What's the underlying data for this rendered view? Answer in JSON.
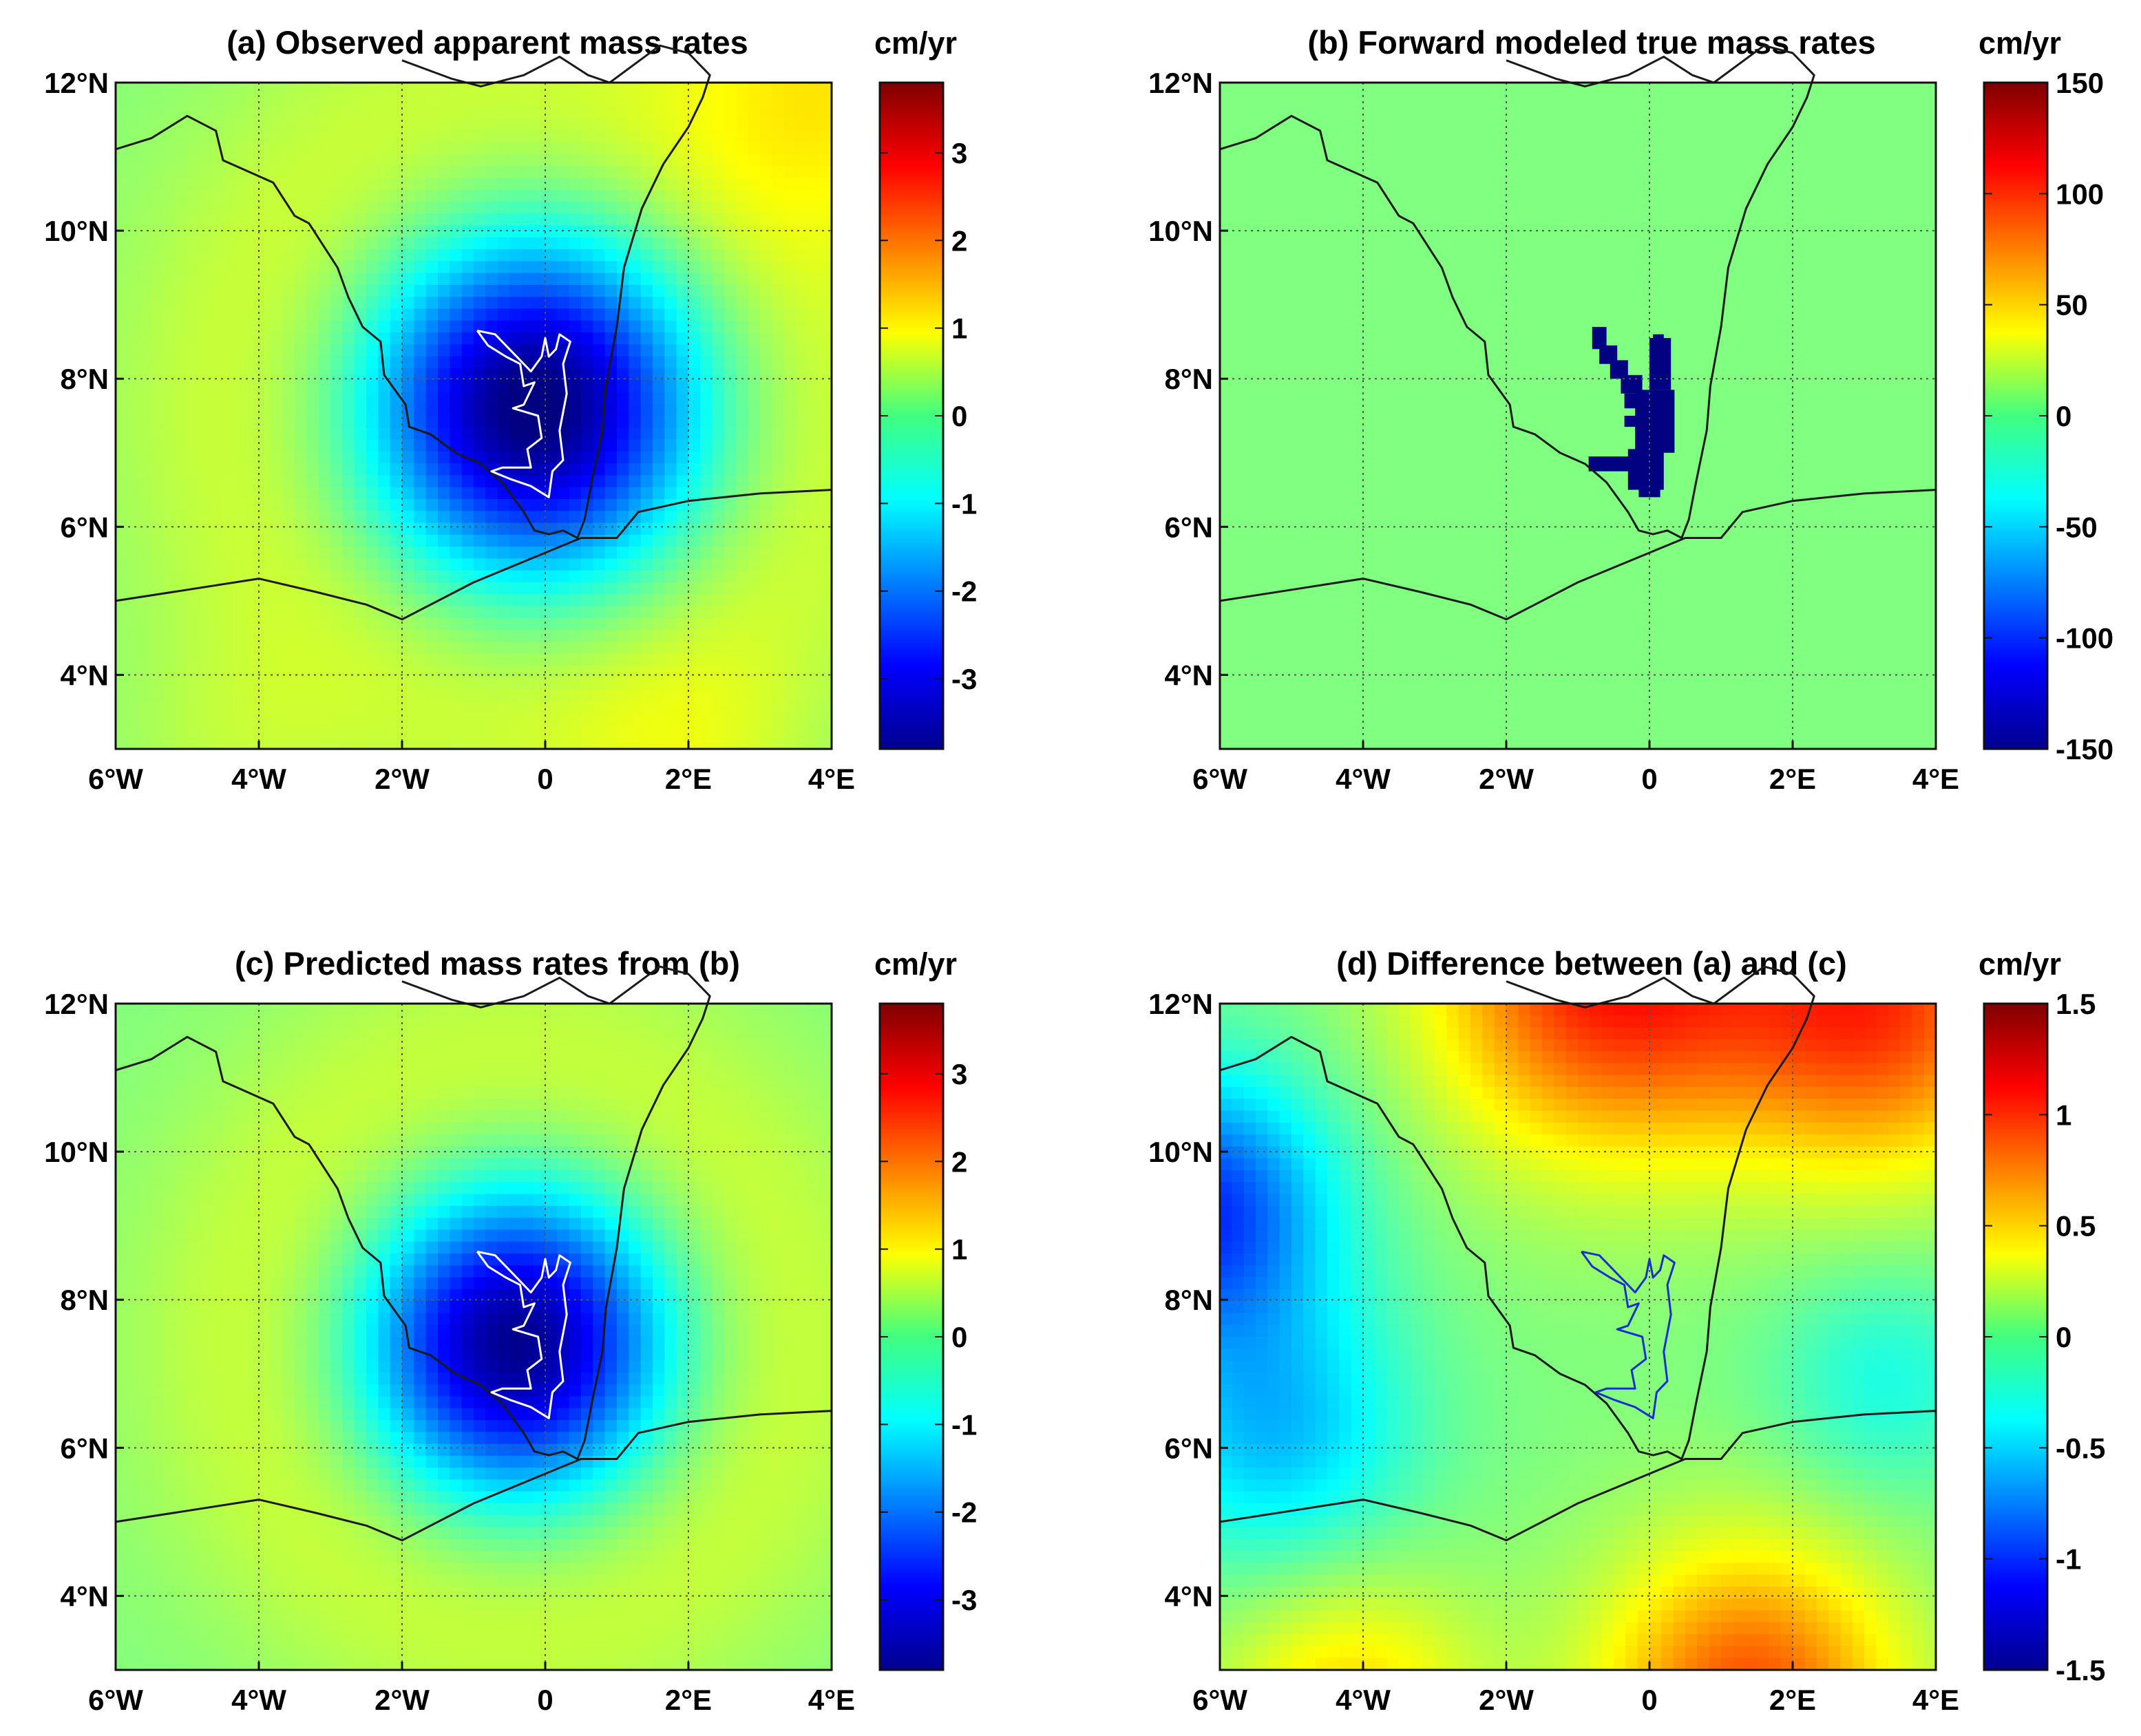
{
  "figure": {
    "lon_ticks": [
      "6°W",
      "4°W",
      "2°W",
      "0",
      "2°E",
      "4°E"
    ],
    "lat_ticks": [
      "12°N",
      "10°N",
      "8°N",
      "6°N",
      "4°N"
    ]
  },
  "chart_data": [
    {
      "type": "heatmap",
      "panel": "a",
      "title": "(a) Observed apparent mass rates",
      "colorbar_label": "cm/yr",
      "colorbar_ticks": [
        "3",
        "2",
        "1",
        "0",
        "-1",
        "-2",
        "-3"
      ],
      "colorbar_tick_values": [
        3,
        2,
        1,
        0,
        -1,
        -2,
        -3
      ],
      "clim": [
        -3.8,
        3.8
      ],
      "xlim": [
        -6,
        4
      ],
      "ylim": [
        3,
        12
      ],
      "field": "negative anomaly centred near 0.2°W, 7.5°N reaching about -3.5; near 0 at edges, slightly positive in NE corner",
      "lake_outline_color": "#ffffff",
      "grid": true
    },
    {
      "type": "heatmap",
      "panel": "b",
      "title": "(b) Forward modeled true mass rates",
      "colorbar_label": "cm/yr",
      "colorbar_ticks": [
        "150",
        "100",
        "50",
        "0",
        "-50",
        "-100",
        "-150"
      ],
      "colorbar_tick_values": [
        150,
        100,
        50,
        0,
        -50,
        -100,
        -150
      ],
      "clim": [
        -150,
        150
      ],
      "xlim": [
        -6,
        4
      ],
      "ylim": [
        3,
        12
      ],
      "field": "0 everywhere except Lake Volta pixels at about -150",
      "grid": true
    },
    {
      "type": "heatmap",
      "panel": "c",
      "title": "(c) Predicted mass rates from (b)",
      "colorbar_label": "cm/yr",
      "colorbar_ticks": [
        "3",
        "2",
        "1",
        "0",
        "-1",
        "-2",
        "-3"
      ],
      "colorbar_tick_values": [
        3,
        2,
        1,
        0,
        -1,
        -2,
        -3
      ],
      "clim": [
        -3.8,
        3.8
      ],
      "xlim": [
        -6,
        4
      ],
      "ylim": [
        3,
        12
      ],
      "field": "circular negative anomaly centred near 0.4°W, 7.3°N reaching about -3.5",
      "lake_outline_color": "#ffffff",
      "grid": true
    },
    {
      "type": "heatmap",
      "panel": "d",
      "title": "(d) Difference between (a) and (c)",
      "colorbar_label": "cm/yr",
      "colorbar_ticks": [
        "1.5",
        "1",
        "0.5",
        "0",
        "-0.5",
        "-1",
        "-1.5"
      ],
      "colorbar_tick_values": [
        1.5,
        1,
        0.5,
        0,
        -0.5,
        -1,
        -1.5
      ],
      "clim": [
        -1.5,
        1.5
      ],
      "xlim": [
        -6,
        4
      ],
      "ylim": [
        3,
        12
      ],
      "field": "positive (~1) along north edge and south-east, negative (~-1) in the west",
      "lake_outline_color": "#1a2fd0",
      "grid": true
    }
  ],
  "colormap": "jet"
}
